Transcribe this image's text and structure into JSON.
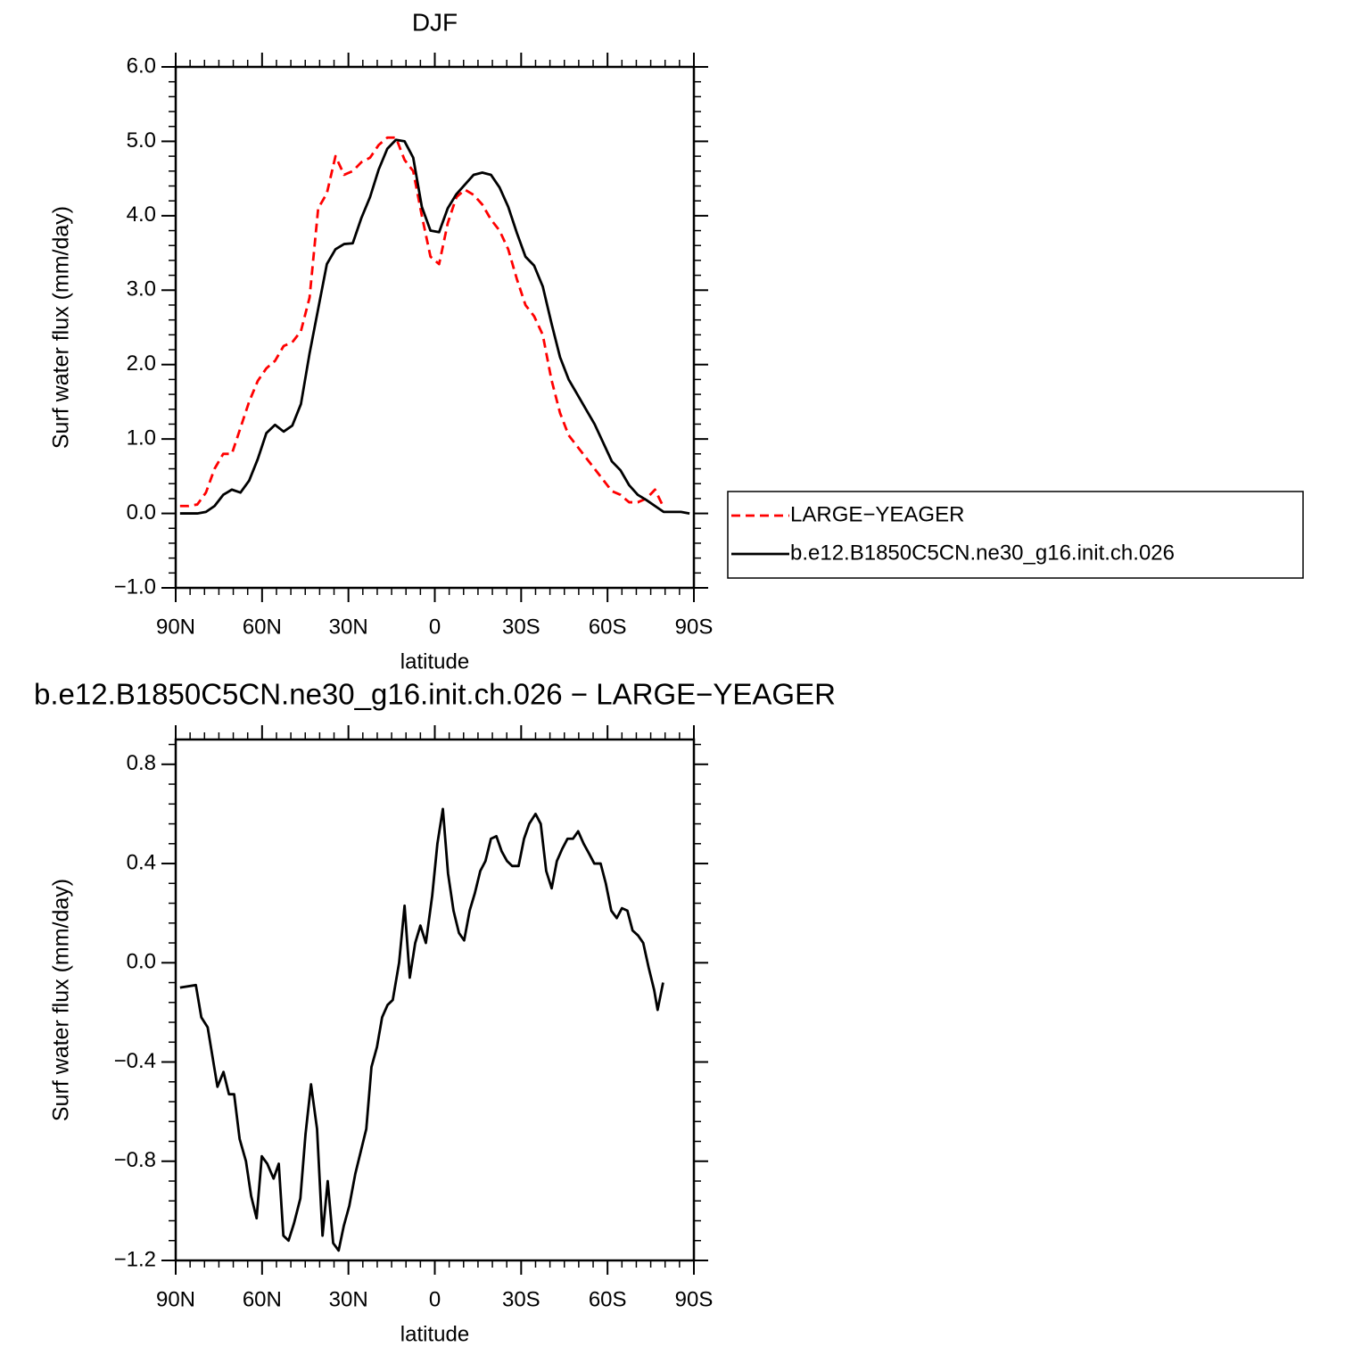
{
  "chart_data": [
    {
      "type": "line",
      "title": "DJF",
      "xlabel": "latitude",
      "ylabel": "Surf water flux (mm/day)",
      "xlim": [
        90,
        -90
      ],
      "xticks": [
        {
          "value": 90,
          "label": "90N"
        },
        {
          "value": 60,
          "label": "60N"
        },
        {
          "value": 30,
          "label": "30N"
        },
        0,
        {
          "value": -30,
          "label": "30S"
        },
        {
          "value": -60,
          "label": "60S"
        },
        {
          "value": -90,
          "label": "90S"
        }
      ],
      "ylim": [
        -1.0,
        6.0
      ],
      "yticks": [
        {
          "value": -1,
          "label": "−1.0"
        },
        {
          "value": 0,
          "label": "0.0"
        },
        {
          "value": 1,
          "label": "1.0"
        },
        {
          "value": 2,
          "label": "2.0"
        },
        {
          "value": 3,
          "label": "3.0"
        },
        {
          "value": 4,
          "label": "4.0"
        },
        {
          "value": 5,
          "label": "5.0"
        },
        {
          "value": 6,
          "label": "6.0"
        }
      ],
      "legend": "right",
      "x": [
        88.5,
        85.5,
        82.5,
        79.5,
        76.5,
        73.5,
        70.5,
        67.5,
        64.5,
        61.5,
        58.5,
        55.5,
        52.5,
        49.5,
        46.5,
        43.5,
        40.5,
        37.5,
        34.5,
        31.5,
        28.5,
        25.5,
        22.5,
        19.5,
        16.5,
        13.5,
        10.5,
        7.5,
        4.5,
        1.5,
        -1.5,
        -4.5,
        -7.5,
        -10.5,
        -13.5,
        -16.5,
        -19.5,
        -22.5,
        -25.5,
        -28.5,
        -31.5,
        -34.5,
        -37.5,
        -40.5,
        -43.5,
        -46.5,
        -49.5,
        -52.5,
        -55.5,
        -58.5,
        -61.5,
        -64.5,
        -67.5,
        -70.5,
        -73.5,
        -76.5,
        -79.5,
        -82.5,
        -85.5,
        -88.5
      ],
      "series": [
        {
          "name": "LARGE−YEAGER",
          "color": "#ff0000",
          "linestyle": "dashed",
          "values": [
            0.1,
            0.1,
            0.12,
            0.28,
            0.6,
            0.8,
            0.8,
            1.15,
            1.5,
            1.78,
            1.95,
            2.05,
            2.25,
            2.3,
            2.45,
            2.9,
            4.1,
            4.3,
            4.8,
            4.55,
            4.6,
            4.72,
            4.78,
            4.95,
            5.05,
            5.05,
            4.75,
            4.6,
            4.0,
            3.45,
            3.35,
            3.9,
            4.25,
            4.35,
            4.28,
            4.15,
            3.95,
            3.8,
            3.55,
            3.15,
            2.8,
            2.65,
            2.4,
            1.8,
            1.35,
            1.05,
            0.9,
            0.75,
            0.6,
            0.45,
            0.3,
            0.25,
            0.15,
            0.15,
            0.2,
            0.32,
            0.08,
            null,
            null,
            null
          ]
        },
        {
          "name": "b.e12.B1850C5CN.ne30_g16.init.ch.026",
          "color": "#000000",
          "linestyle": "solid",
          "values": [
            0,
            0,
            0,
            0.02,
            0.1,
            0.25,
            0.32,
            0.28,
            0.44,
            0.73,
            1.08,
            1.19,
            1.1,
            1.18,
            1.47,
            2.15,
            2.75,
            3.35,
            3.55,
            3.62,
            3.63,
            3.97,
            4.25,
            4.62,
            4.9,
            5.02,
            5.0,
            4.78,
            4.12,
            3.8,
            3.78,
            4.1,
            4.29,
            4.42,
            4.55,
            4.58,
            4.55,
            4.38,
            4.12,
            3.77,
            3.45,
            3.33,
            3.05,
            2.56,
            2.1,
            1.8,
            1.6,
            1.4,
            1.2,
            0.95,
            0.7,
            0.58,
            0.38,
            0.25,
            0.18,
            0.1,
            0.02,
            0.02,
            0.02,
            0
          ]
        }
      ]
    },
    {
      "type": "line",
      "title": "b.e12.B1850C5CN.ne30_g16.init.ch.026 − LARGE−YEAGER",
      "xlabel": "latitude",
      "ylabel": "Surf water flux (mm/day)",
      "xlim": [
        90,
        -90
      ],
      "xticks": [
        {
          "value": 90,
          "label": "90N"
        },
        {
          "value": 60,
          "label": "60N"
        },
        {
          "value": 30,
          "label": "30N"
        },
        0,
        {
          "value": -30,
          "label": "30S"
        },
        {
          "value": -60,
          "label": "60S"
        },
        {
          "value": -90,
          "label": "90S"
        }
      ],
      "ylim": [
        -1.2,
        0.9
      ],
      "yticks": [
        {
          "value": -1.2,
          "label": "−1.2"
        },
        {
          "value": -0.8,
          "label": "−0.8"
        },
        {
          "value": -0.4,
          "label": "−0.4"
        },
        {
          "value": 0,
          "label": "0.0"
        },
        0.4,
        0.8
      ],
      "color": "#000000",
      "linestyle": "solid",
      "x": [
        88.5,
        83.0,
        81.1,
        78.9,
        75.5,
        73.4,
        71.5,
        69.7,
        67.8,
        65.6,
        63.8,
        61.9,
        60.1,
        58.2,
        56.0,
        54.2,
        52.6,
        50.8,
        48.9,
        46.7,
        44.9,
        43.0,
        40.9,
        39.0,
        37.2,
        35.3,
        33.4,
        31.6,
        29.7,
        27.6,
        25.7,
        23.8,
        22.0,
        20.1,
        18.3,
        16.4,
        14.6,
        12.4,
        10.5,
        8.7,
        6.8,
        5.0,
        3.1,
        0.9,
        -0.9,
        -2.8,
        -4.6,
        -6.5,
        -8.4,
        -10.2,
        -12.1,
        -13.9,
        -15.8,
        -17.6,
        -19.5,
        -21.4,
        -23.2,
        -25.1,
        -26.9,
        -29.1,
        -31.0,
        -32.8,
        -35.0,
        -36.8,
        -38.7,
        -40.6,
        -42.4,
        -44.3,
        -46.1,
        -48.0,
        -49.8,
        -51.7,
        -53.6,
        -55.4,
        -57.6,
        -59.4,
        -61.3,
        -63.2,
        -65.0,
        -66.9,
        -68.7,
        -70.6,
        -72.4,
        -74.3,
        -76.2,
        -77.4,
        -79.3
      ],
      "values": [
        -0.1,
        -0.09,
        -0.22,
        -0.26,
        -0.5,
        -0.44,
        -0.53,
        -0.53,
        -0.71,
        -0.8,
        -0.94,
        -1.03,
        -0.78,
        -0.81,
        -0.87,
        -0.81,
        -1.1,
        -1.12,
        -1.05,
        -0.95,
        -0.69,
        -0.49,
        -0.67,
        -1.1,
        -0.88,
        -1.13,
        -1.16,
        -1.06,
        -0.98,
        -0.85,
        -0.76,
        -0.67,
        -0.42,
        -0.34,
        -0.22,
        -0.17,
        -0.15,
        0.0,
        0.23,
        -0.06,
        0.08,
        0.15,
        0.08,
        0.27,
        0.48,
        0.62,
        0.36,
        0.21,
        0.12,
        0.09,
        0.21,
        0.28,
        0.37,
        0.41,
        0.5,
        0.51,
        0.45,
        0.41,
        0.39,
        0.39,
        0.5,
        0.56,
        0.6,
        0.56,
        0.37,
        0.3,
        0.41,
        0.46,
        0.5,
        0.5,
        0.53,
        0.48,
        0.44,
        0.4,
        0.4,
        0.32,
        0.21,
        0.18,
        0.22,
        0.21,
        0.13,
        0.11,
        0.08,
        -0.02,
        -0.11,
        -0.19,
        -0.08
      ]
    }
  ]
}
